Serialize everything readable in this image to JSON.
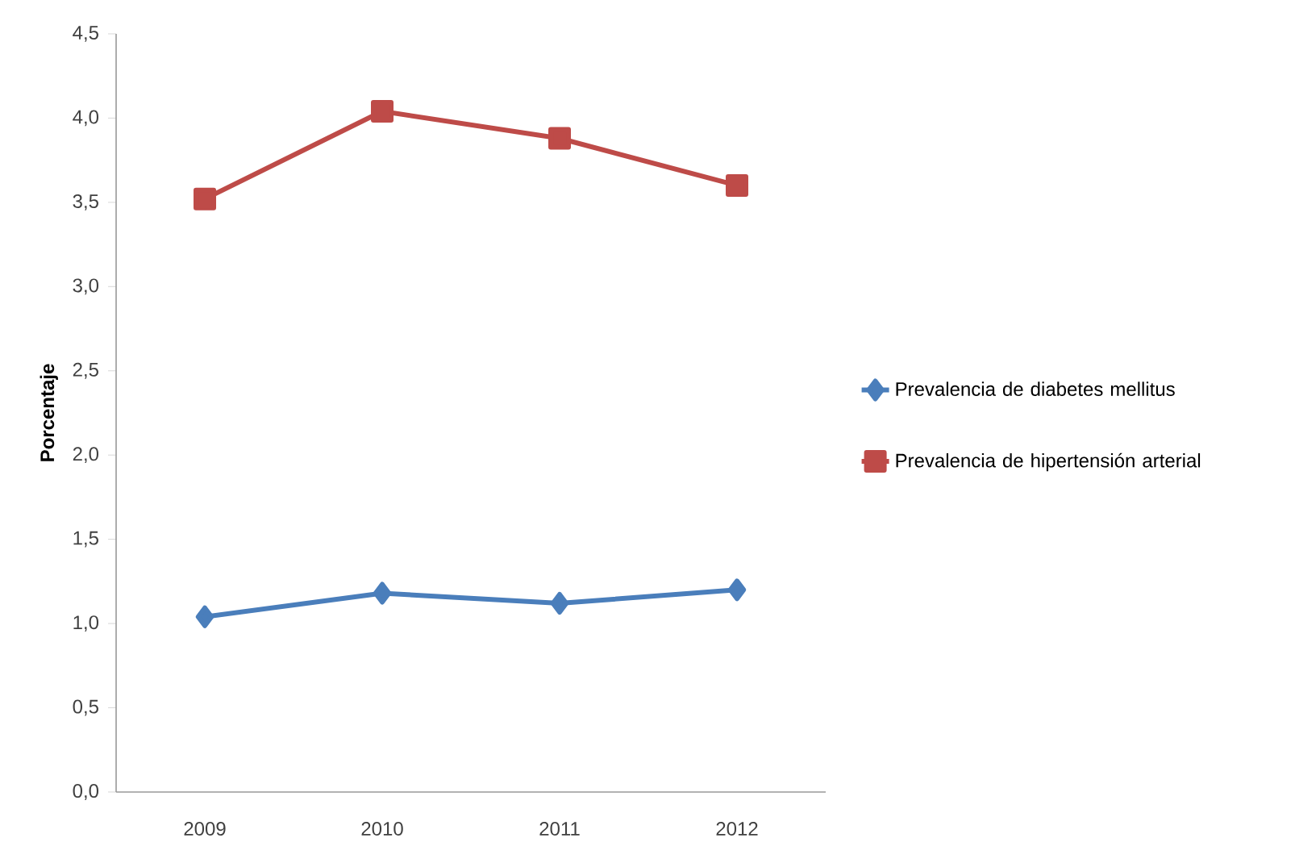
{
  "chart_data": {
    "type": "line",
    "ylabel": "Porcentaje",
    "categories": [
      "2009",
      "2010",
      "2011",
      "2012"
    ],
    "series": [
      {
        "name": "Prevalencia de diabetes mellitus",
        "color": "#4a7ebb",
        "marker": "diamond",
        "values": [
          1.04,
          1.18,
          1.12,
          1.2
        ]
      },
      {
        "name": "Prevalencia de hipertensión arterial",
        "color": "#be4b48",
        "marker": "square",
        "values": [
          3.52,
          4.04,
          3.88,
          3.6
        ]
      }
    ],
    "ylim": [
      0,
      4.5
    ],
    "yticks": [
      {
        "value": 0,
        "label": "0,0"
      },
      {
        "value": 0.5,
        "label": "0,5"
      },
      {
        "value": 1,
        "label": "1,0"
      },
      {
        "value": 1.5,
        "label": "1,5"
      },
      {
        "value": 2,
        "label": "2,0"
      },
      {
        "value": 2.5,
        "label": "2,5"
      },
      {
        "value": 3,
        "label": "3,0"
      },
      {
        "value": 3.5,
        "label": "3,5"
      },
      {
        "value": 4,
        "label": "4,0"
      },
      {
        "value": 4.5,
        "label": "4,5"
      }
    ],
    "grid": false,
    "legend": "right",
    "line_style": "solid"
  }
}
